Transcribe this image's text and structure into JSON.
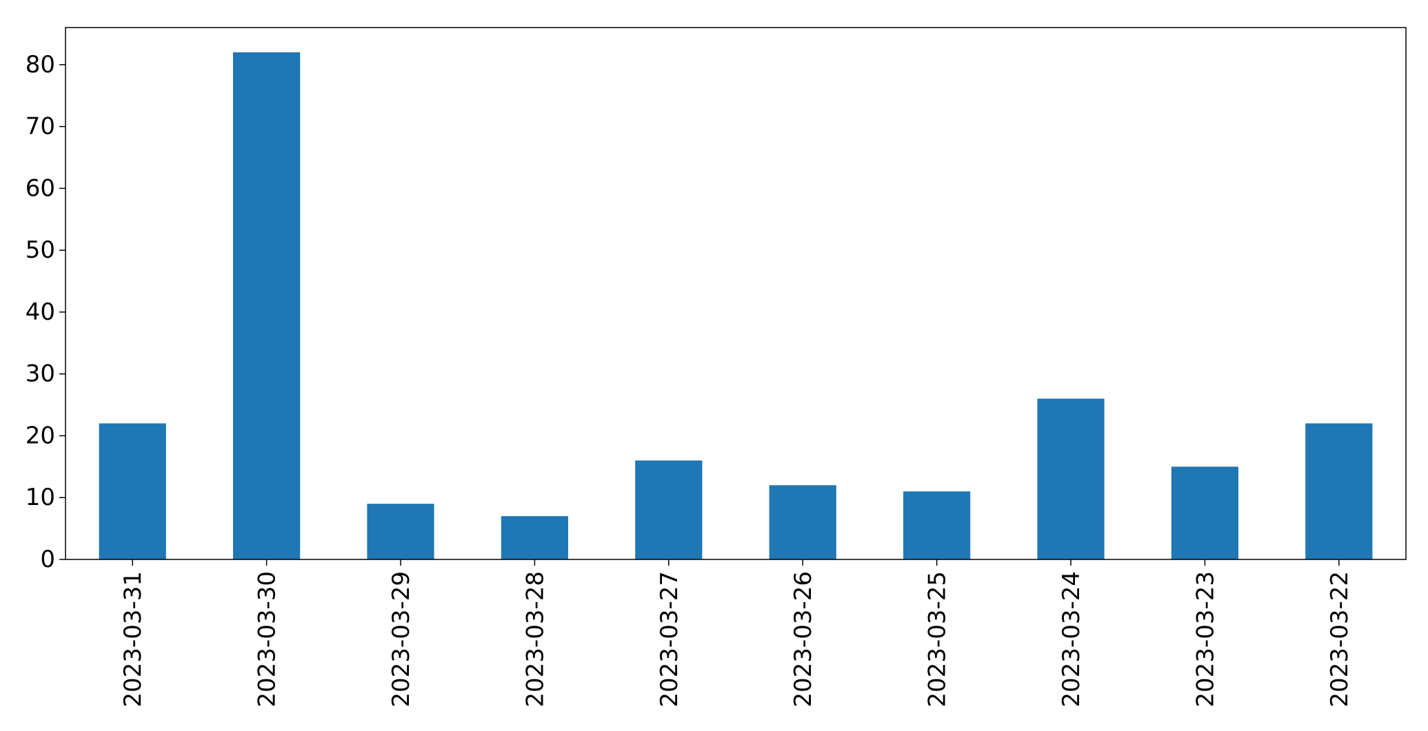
{
  "chart_data": {
    "type": "bar",
    "categories": [
      "2023-03-31",
      "2023-03-30",
      "2023-03-29",
      "2023-03-28",
      "2023-03-27",
      "2023-03-26",
      "2023-03-25",
      "2023-03-24",
      "2023-03-23",
      "2023-03-22"
    ],
    "values": [
      22,
      82,
      9,
      7,
      16,
      12,
      11,
      26,
      15,
      22
    ],
    "yticks": [
      0,
      10,
      20,
      30,
      40,
      50,
      60,
      70,
      80
    ],
    "ylim": [
      0,
      86
    ],
    "title": "",
    "xlabel": "",
    "ylabel": "",
    "grid": false,
    "legend": "none",
    "bar_color": "#1f77b4"
  }
}
